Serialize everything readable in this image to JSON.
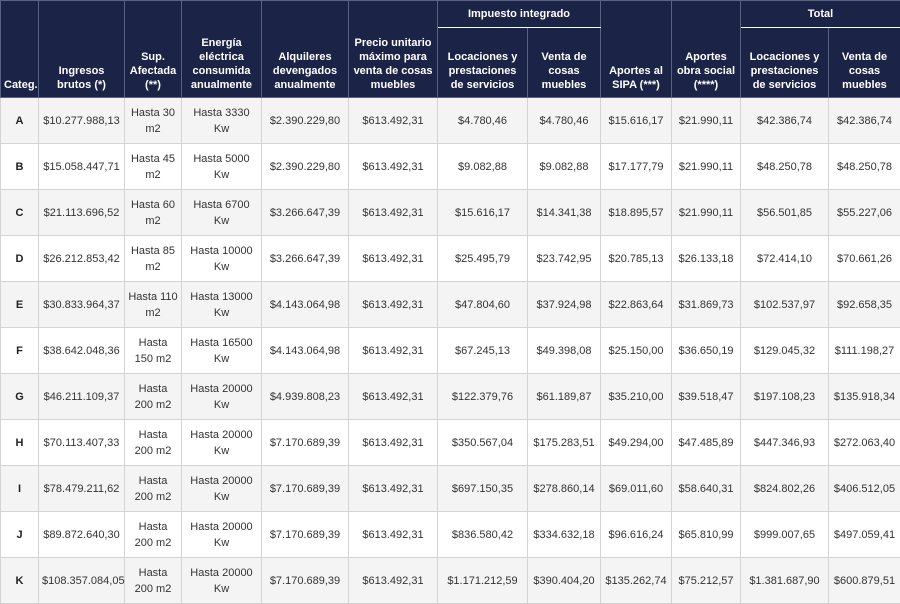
{
  "headers": {
    "categ": "Categ.",
    "ingresos": "Ingresos brutos (*)",
    "sup": "Sup. Afectada (**)",
    "energia": "Energía eléctrica consumida anualmente",
    "alquileres": "Alquileres devengados anualmente",
    "precio": "Precio unitario máximo para venta de cosas muebles",
    "impuesto_group": "Impuesto integrado",
    "impuesto_locaciones": "Locaciones y prestaciones de servicios",
    "impuesto_venta": "Venta de cosas muebles",
    "sipa": "Aportes al SIPA (***)",
    "obra_social": "Aportes obra social (****)",
    "total_group": "Total",
    "total_locaciones": "Locaciones y prestaciones de servicios",
    "total_venta": "Venta de cosas muebles"
  },
  "rows": [
    {
      "cat": "A",
      "ingresos": "$10.277.988,13",
      "sup": "Hasta 30 m2",
      "energia": "Hasta 3330 Kw",
      "alquileres": "$2.390.229,80",
      "precio": "$613.492,31",
      "imp_loc": "$4.780,46",
      "imp_venta": "$4.780,46",
      "sipa": "$15.616,17",
      "obra": "$21.990,11",
      "tot_loc": "$42.386,74",
      "tot_venta": "$42.386,74"
    },
    {
      "cat": "B",
      "ingresos": "$15.058.447,71",
      "sup": "Hasta 45 m2",
      "energia": "Hasta 5000 Kw",
      "alquileres": "$2.390.229,80",
      "precio": "$613.492,31",
      "imp_loc": "$9.082,88",
      "imp_venta": "$9.082,88",
      "sipa": "$17.177,79",
      "obra": "$21.990,11",
      "tot_loc": "$48.250,78",
      "tot_venta": "$48.250,78"
    },
    {
      "cat": "C",
      "ingresos": "$21.113.696,52",
      "sup": "Hasta 60 m2",
      "energia": "Hasta 6700 Kw",
      "alquileres": "$3.266.647,39",
      "precio": "$613.492,31",
      "imp_loc": "$15.616,17",
      "imp_venta": "$14.341,38",
      "sipa": "$18.895,57",
      "obra": "$21.990,11",
      "tot_loc": "$56.501,85",
      "tot_venta": "$55.227,06"
    },
    {
      "cat": "D",
      "ingresos": "$26.212.853,42",
      "sup": "Hasta 85 m2",
      "energia": "Hasta 10000 Kw",
      "alquileres": "$3.266.647,39",
      "precio": "$613.492,31",
      "imp_loc": "$25.495,79",
      "imp_venta": "$23.742,95",
      "sipa": "$20.785,13",
      "obra": "$26.133,18",
      "tot_loc": "$72.414,10",
      "tot_venta": "$70.661,26"
    },
    {
      "cat": "E",
      "ingresos": "$30.833.964,37",
      "sup": "Hasta 110 m2",
      "energia": "Hasta 13000 Kw",
      "alquileres": "$4.143.064,98",
      "precio": "$613.492,31",
      "imp_loc": "$47.804,60",
      "imp_venta": "$37.924,98",
      "sipa": "$22.863,64",
      "obra": "$31.869,73",
      "tot_loc": "$102.537,97",
      "tot_venta": "$92.658,35"
    },
    {
      "cat": "F",
      "ingresos": "$38.642.048,36",
      "sup": "Hasta 150 m2",
      "energia": "Hasta 16500 Kw",
      "alquileres": "$4.143.064,98",
      "precio": "$613.492,31",
      "imp_loc": "$67.245,13",
      "imp_venta": "$49.398,08",
      "sipa": "$25.150,00",
      "obra": "$36.650,19",
      "tot_loc": "$129.045,32",
      "tot_venta": "$111.198,27"
    },
    {
      "cat": "G",
      "ingresos": "$46.211.109,37",
      "sup": "Hasta 200 m2",
      "energia": "Hasta 20000 Kw",
      "alquileres": "$4.939.808,23",
      "precio": "$613.492,31",
      "imp_loc": "$122.379,76",
      "imp_venta": "$61.189,87",
      "sipa": "$35.210,00",
      "obra": "$39.518,47",
      "tot_loc": "$197.108,23",
      "tot_venta": "$135.918,34"
    },
    {
      "cat": "H",
      "ingresos": "$70.113.407,33",
      "sup": "Hasta 200 m2",
      "energia": "Hasta 20000 Kw",
      "alquileres": "$7.170.689,39",
      "precio": "$613.492,31",
      "imp_loc": "$350.567,04",
      "imp_venta": "$175.283,51",
      "sipa": "$49.294,00",
      "obra": "$47.485,89",
      "tot_loc": "$447.346,93",
      "tot_venta": "$272.063,40"
    },
    {
      "cat": "I",
      "ingresos": "$78.479.211,62",
      "sup": "Hasta 200 m2",
      "energia": "Hasta 20000 Kw",
      "alquileres": "$7.170.689,39",
      "precio": "$613.492,31",
      "imp_loc": "$697.150,35",
      "imp_venta": "$278.860,14",
      "sipa": "$69.011,60",
      "obra": "$58.640,31",
      "tot_loc": "$824.802,26",
      "tot_venta": "$406.512,05"
    },
    {
      "cat": "J",
      "ingresos": "$89.872.640,30",
      "sup": "Hasta 200 m2",
      "energia": "Hasta 20000 Kw",
      "alquileres": "$7.170.689,39",
      "precio": "$613.492,31",
      "imp_loc": "$836.580,42",
      "imp_venta": "$334.632,18",
      "sipa": "$96.616,24",
      "obra": "$65.810,99",
      "tot_loc": "$999.007,65",
      "tot_venta": "$497.059,41"
    },
    {
      "cat": "K",
      "ingresos": "$108.357.084,05",
      "sup": "Hasta 200 m2",
      "energia": "Hasta 20000 Kw",
      "alquileres": "$7.170.689,39",
      "precio": "$613.492,31",
      "imp_loc": "$1.171.212,59",
      "imp_venta": "$390.404,20",
      "sipa": "$135.262,74",
      "obra": "$75.212,57",
      "tot_loc": "$1.381.687,90",
      "tot_venta": "$600.879,51"
    }
  ],
  "colors": {
    "header_bg": "#1b2447",
    "row_alt": "#f4f4f4"
  }
}
